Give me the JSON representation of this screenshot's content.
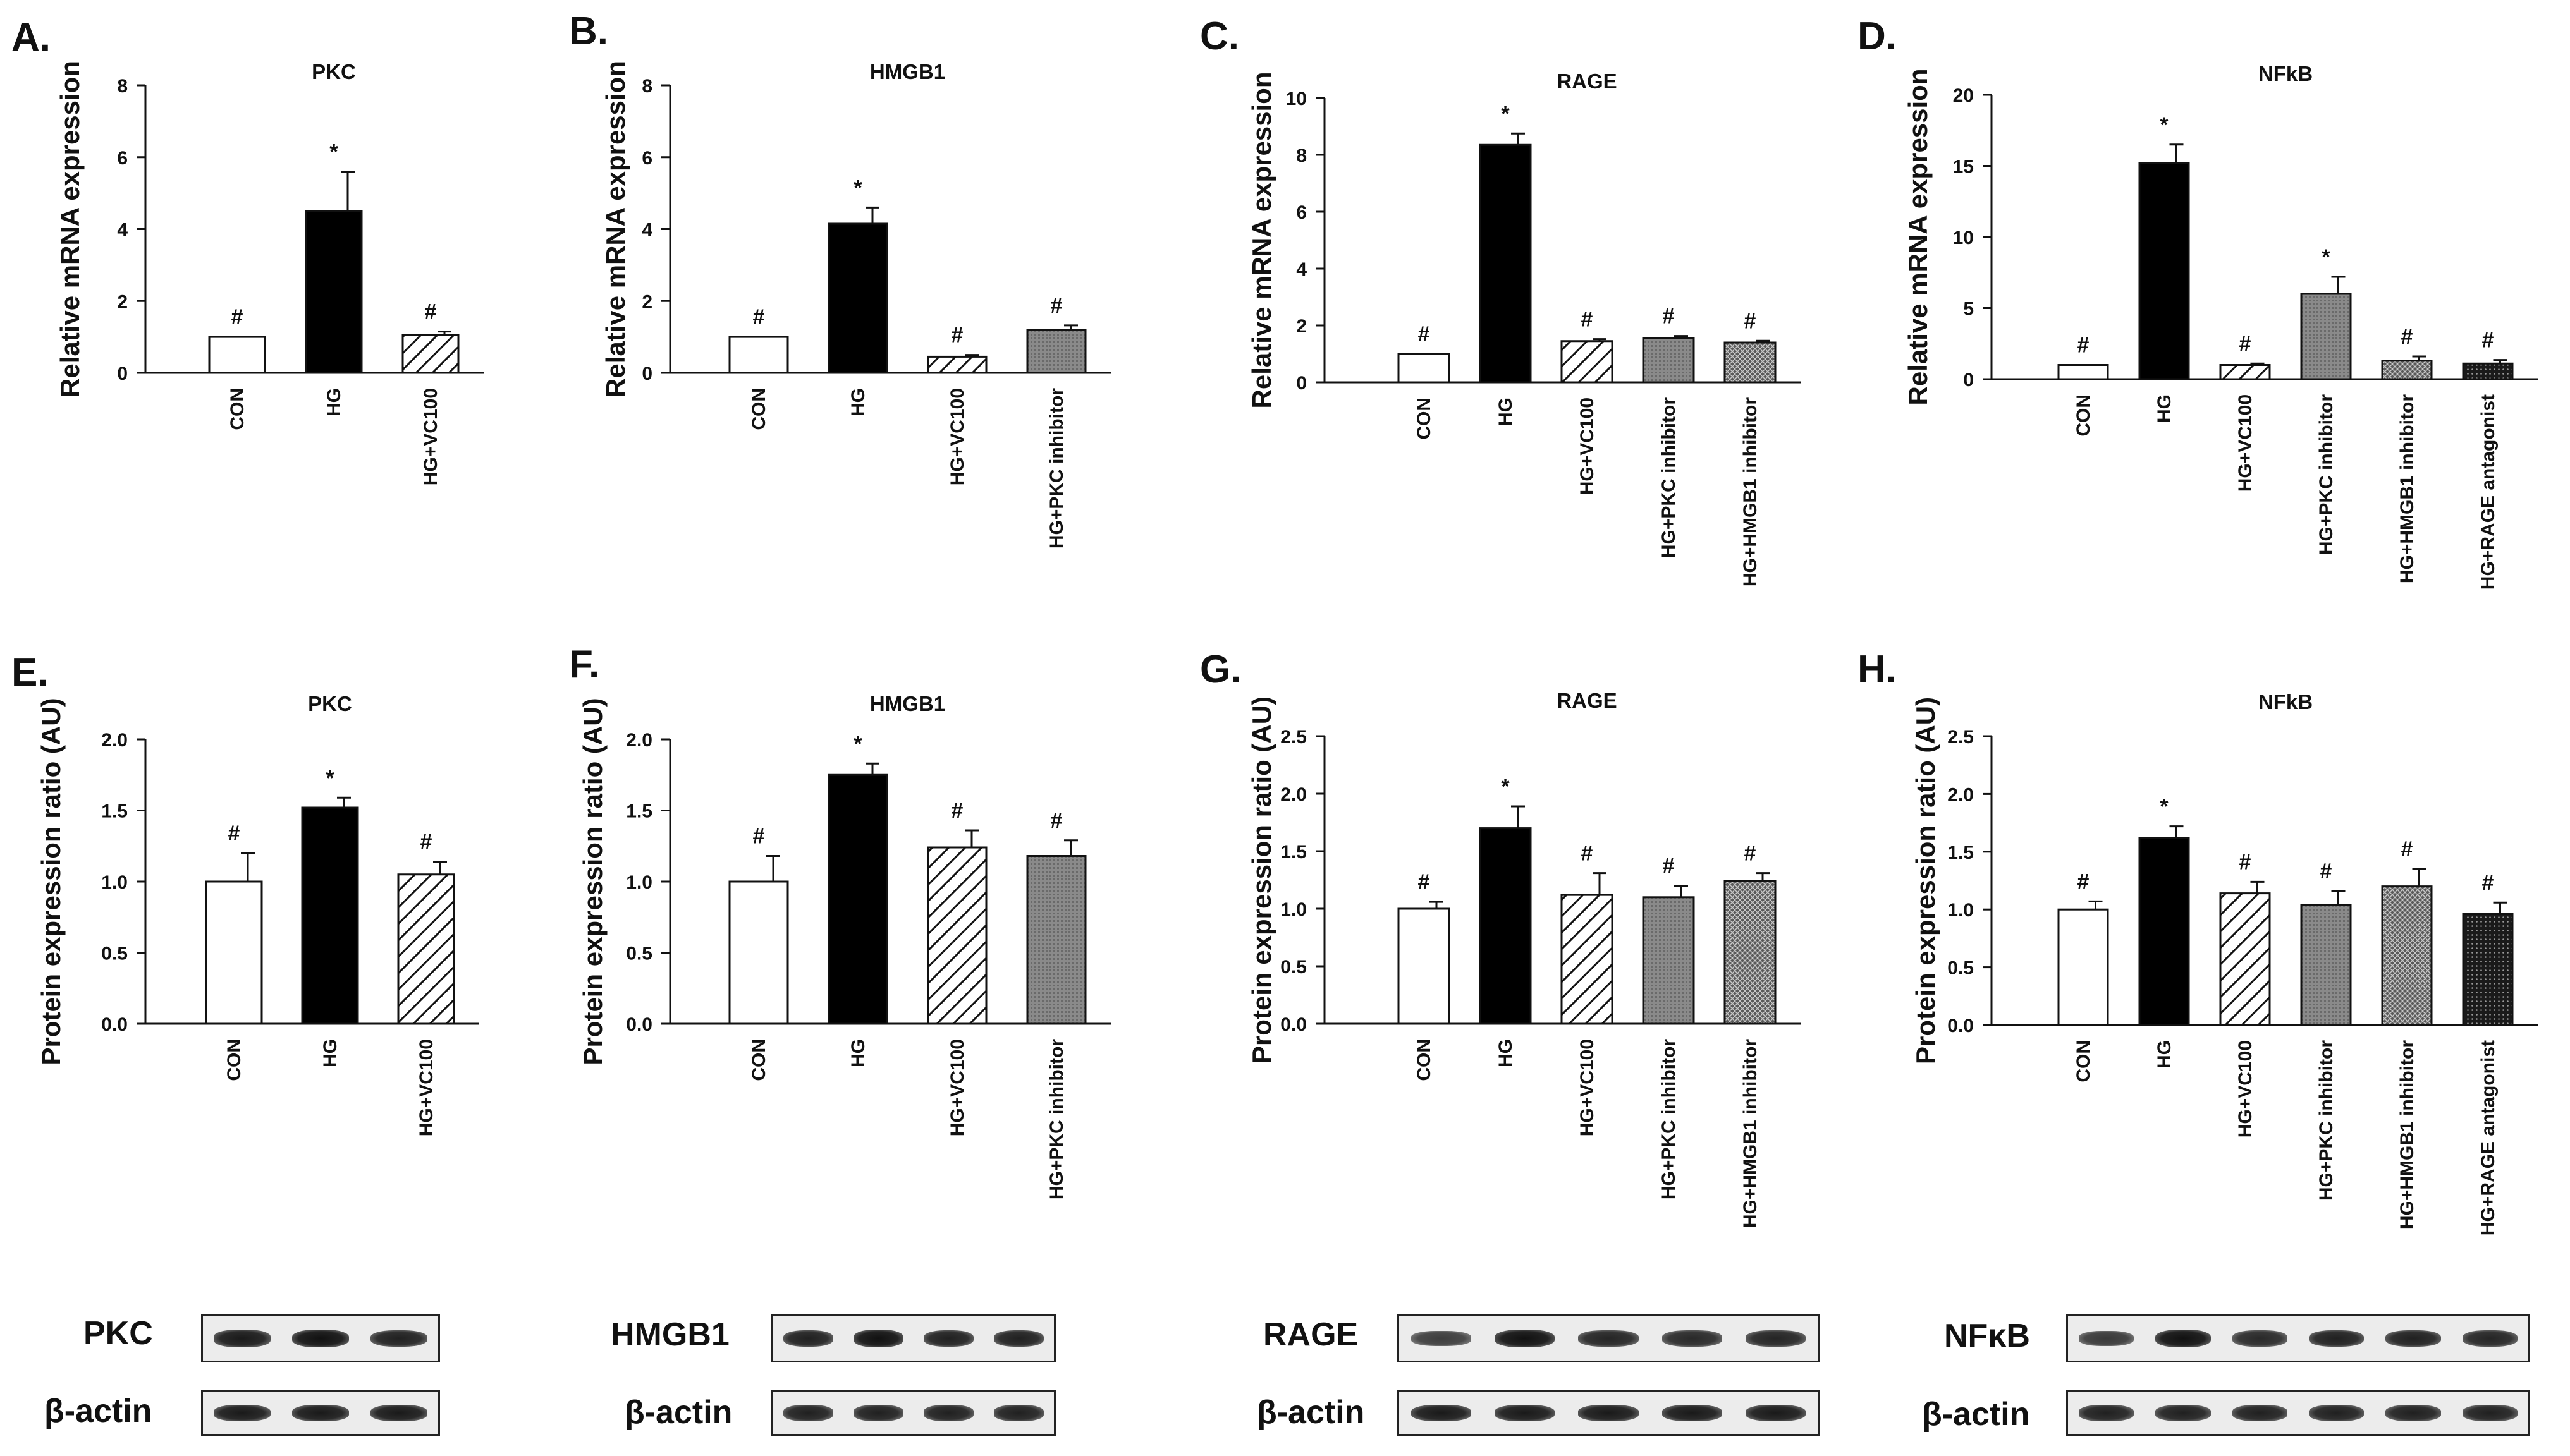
{
  "panels": [
    {
      "id": "A",
      "label": "A.",
      "title": "PKC",
      "ylabel": "Relative mRNA expression",
      "chart_data": {
        "type": "bar",
        "title": "PKC",
        "ylabel": "Relative mRNA expression",
        "ylim": [
          0,
          8
        ],
        "yticks": [
          "0",
          "2",
          "4",
          "6",
          "8"
        ],
        "categories": [
          "CON",
          "HG",
          "HG+VC100"
        ],
        "values": [
          1.0,
          4.5,
          1.05
        ],
        "errors": [
          0,
          1.1,
          0.1
        ],
        "markers": [
          "#",
          "*",
          "#"
        ]
      }
    },
    {
      "id": "B",
      "label": "B.",
      "title": "HMGB1",
      "ylabel": "Relative mRNA expression",
      "chart_data": {
        "type": "bar",
        "title": "HMGB1",
        "ylabel": "Relative mRNA expression",
        "ylim": [
          0,
          8
        ],
        "yticks": [
          "0",
          "2",
          "4",
          "6",
          "8"
        ],
        "categories": [
          "CON",
          "HG",
          "HG+VC100",
          "HG+PKC inhibitor"
        ],
        "values": [
          1.0,
          4.15,
          0.45,
          1.2
        ],
        "errors": [
          0,
          0.45,
          0.05,
          0.12
        ],
        "markers": [
          "#",
          "*",
          "#",
          "#"
        ]
      }
    },
    {
      "id": "C",
      "label": "C.",
      "title": "RAGE",
      "ylabel": "Relative mRNA expression",
      "chart_data": {
        "type": "bar",
        "title": "RAGE",
        "ylabel": "Relative mRNA expression",
        "ylim": [
          0,
          10
        ],
        "yticks": [
          "0",
          "2",
          "4",
          "6",
          "8",
          "10"
        ],
        "categories": [
          "CON",
          "HG",
          "HG+VC100",
          "HG+PKC inhibitor",
          "HG+HMGB1 inhibitor"
        ],
        "values": [
          1.0,
          8.35,
          1.45,
          1.55,
          1.4
        ],
        "errors": [
          0,
          0.4,
          0.07,
          0.08,
          0.06
        ],
        "markers": [
          "#",
          "*",
          "#",
          "#",
          "#"
        ]
      }
    },
    {
      "id": "D",
      "label": "D.",
      "title": "NFkB",
      "ylabel": "Relative mRNA expression",
      "chart_data": {
        "type": "bar",
        "title": "NFkB",
        "ylabel": "Relative mRNA expression",
        "ylim": [
          0,
          20
        ],
        "yticks": [
          "0",
          "5",
          "10",
          "15",
          "20"
        ],
        "categories": [
          "CON",
          "HG",
          "HG+VC100",
          "HG+PKC inhibitor",
          "HG+HMGB1 inhibitor",
          "HG+RAGE antagonist"
        ],
        "values": [
          1.0,
          15.2,
          1.0,
          6.0,
          1.3,
          1.1
        ],
        "errors": [
          0,
          1.3,
          0.1,
          1.2,
          0.3,
          0.25
        ],
        "markers": [
          "#",
          "*",
          "#",
          "*",
          "#",
          "#"
        ]
      }
    },
    {
      "id": "E",
      "label": "E.",
      "title": "PKC",
      "ylabel": "Protein expression ratio (AU)",
      "chart_data": {
        "type": "bar",
        "title": "PKC",
        "ylabel": "Protein expression ratio (AU)",
        "ylim": [
          0,
          2.0
        ],
        "yticks": [
          "0.0",
          "0.5",
          "1.0",
          "1.5",
          "2.0"
        ],
        "categories": [
          "CON",
          "HG",
          "HG+VC100"
        ],
        "values": [
          1.0,
          1.52,
          1.05
        ],
        "errors": [
          0.2,
          0.07,
          0.09
        ],
        "markers": [
          "#",
          "*",
          "#"
        ]
      }
    },
    {
      "id": "F",
      "label": "F.",
      "title": "HMGB1",
      "ylabel": "Protein expression ratio (AU)",
      "chart_data": {
        "type": "bar",
        "title": "HMGB1",
        "ylabel": "Protein expression ratio (AU)",
        "ylim": [
          0,
          2.0
        ],
        "yticks": [
          "0.0",
          "0.5",
          "1.0",
          "1.5",
          "2.0"
        ],
        "categories": [
          "CON",
          "HG",
          "HG+VC100",
          "HG+PKC inhibitor"
        ],
        "values": [
          1.0,
          1.75,
          1.24,
          1.18
        ],
        "errors": [
          0.18,
          0.08,
          0.12,
          0.11
        ],
        "markers": [
          "#",
          "*",
          "#",
          "#"
        ]
      }
    },
    {
      "id": "G",
      "label": "G.",
      "title": "RAGE",
      "ylabel": "Protein expression ratio (AU)",
      "chart_data": {
        "type": "bar",
        "title": "RAGE",
        "ylabel": "Protein expression ratio (AU)",
        "ylim": [
          0,
          2.5
        ],
        "yticks": [
          "0.0",
          "0.5",
          "1.0",
          "1.5",
          "2.0",
          "2.5"
        ],
        "categories": [
          "CON",
          "HG",
          "HG+VC100",
          "HG+PKC inhibitor",
          "HG+HMGB1 inhibitor"
        ],
        "values": [
          1.0,
          1.7,
          1.12,
          1.1,
          1.24
        ],
        "errors": [
          0.06,
          0.19,
          0.19,
          0.1,
          0.07
        ],
        "markers": [
          "#",
          "*",
          "#",
          "#",
          "#"
        ]
      }
    },
    {
      "id": "H",
      "label": "H.",
      "title": "NFkB",
      "ylabel": "Protein expression ratio (AU)",
      "chart_data": {
        "type": "bar",
        "title": "NFkB",
        "ylabel": "Protein expression ratio (AU)",
        "ylim": [
          0,
          2.5
        ],
        "yticks": [
          "0.0",
          "0.5",
          "1.0",
          "1.5",
          "2.0",
          "2.5"
        ],
        "categories": [
          "CON",
          "HG",
          "HG+VC100",
          "HG+PKC inhibitor",
          "HG+HMGB1 inhibitor",
          "HG+RAGE antagonist"
        ],
        "values": [
          1.0,
          1.62,
          1.14,
          1.04,
          1.2,
          0.96
        ],
        "errors": [
          0.07,
          0.1,
          0.1,
          0.12,
          0.15,
          0.1
        ],
        "markers": [
          "#",
          "*",
          "#",
          "#",
          "#",
          "#"
        ]
      }
    }
  ],
  "blots": [
    {
      "target": "PKC",
      "loading": "β-actin",
      "lanes": 3
    },
    {
      "target": "HMGB1",
      "loading": "β-actin",
      "lanes": 4
    },
    {
      "target": "RAGE",
      "loading": "β-actin",
      "lanes": 5
    },
    {
      "target": "NFκB",
      "loading": "β-actin",
      "lanes": 6
    }
  ],
  "fills": [
    "open",
    "solid",
    "hatch",
    "gray",
    "crosshatch",
    "dark-dots"
  ]
}
